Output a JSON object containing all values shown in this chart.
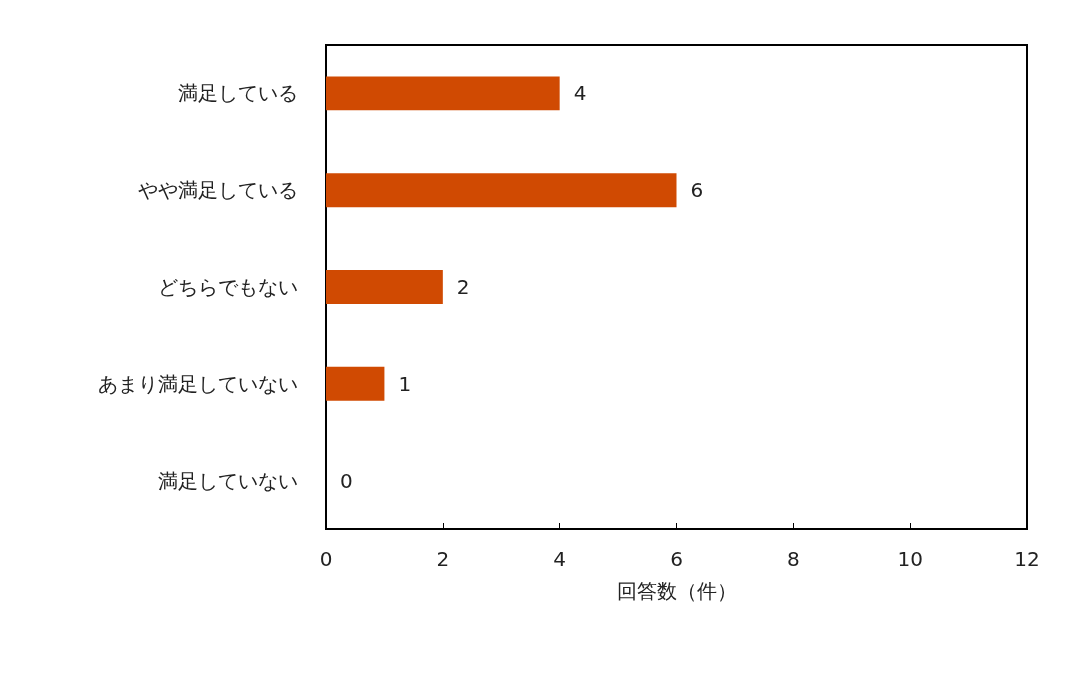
{
  "chart_data": {
    "type": "bar",
    "orientation": "horizontal",
    "categories": [
      "満足している",
      "やや満足している",
      "どちらでもない",
      "あまり満足していない",
      "満足していない"
    ],
    "values": [
      4,
      6,
      2,
      1,
      0
    ],
    "color": "#d04a02",
    "xlabel": "回答数（件）",
    "xlim": [
      0,
      12
    ],
    "xticks": [
      0,
      2,
      4,
      6,
      8,
      10,
      12
    ],
    "data_labels": true,
    "grid": false
  }
}
